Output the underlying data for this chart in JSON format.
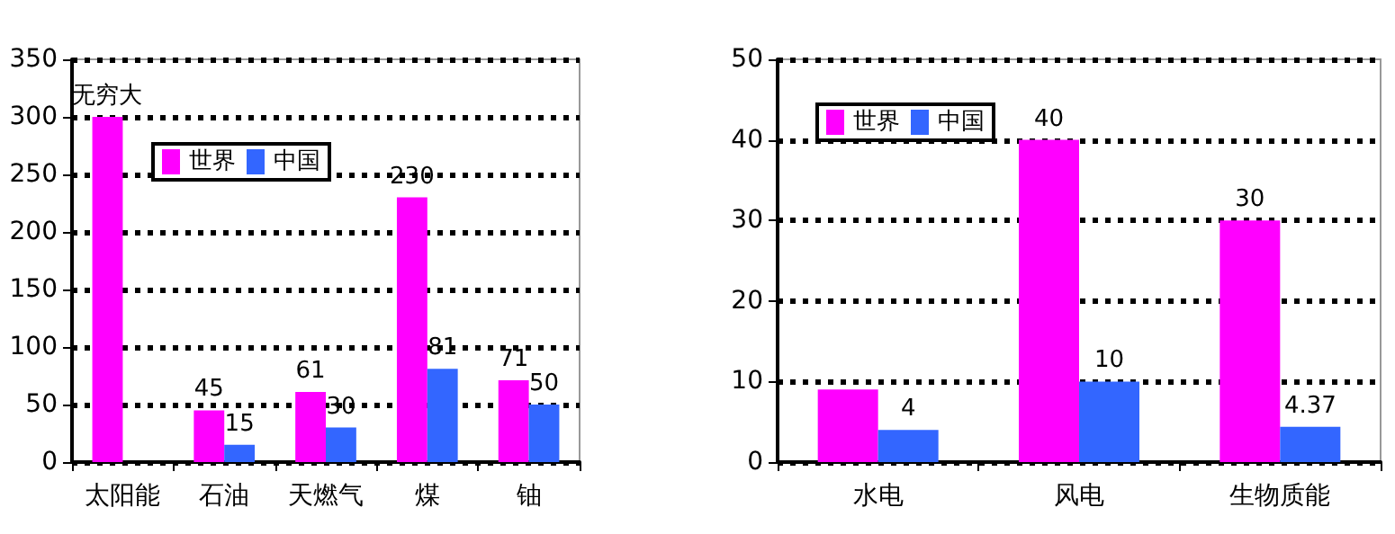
{
  "chart_data": [
    {
      "type": "bar",
      "categories": [
        "太阳能",
        "石油",
        "天燃气",
        "煤",
        "铀"
      ],
      "series": [
        {
          "name": "世界",
          "color": "#ff00ff",
          "values": [
            300,
            45,
            61,
            230,
            71
          ],
          "value_labels": [
            "无穷大",
            "45",
            "61",
            "230",
            "71"
          ]
        },
        {
          "name": "中国",
          "color": "#3366ff",
          "values": [
            null,
            15,
            30,
            81,
            50
          ],
          "value_labels": [
            null,
            "15",
            "30",
            "81",
            "50"
          ]
        }
      ],
      "ylim": [
        0,
        350
      ],
      "yticks": [
        0,
        50,
        100,
        150,
        200,
        250,
        300,
        350
      ],
      "grid": "y",
      "legend": "top"
    },
    {
      "type": "bar",
      "categories": [
        "水电",
        "风电",
        "生物质能"
      ],
      "series": [
        {
          "name": "世界",
          "color": "#ff00ff",
          "values": [
            9,
            40,
            30
          ],
          "value_labels": [
            null,
            "40",
            "30"
          ]
        },
        {
          "name": "中国",
          "color": "#3366ff",
          "values": [
            4,
            10,
            4.37
          ],
          "value_labels": [
            "4",
            "10",
            "4.37"
          ]
        }
      ],
      "ylim": [
        0,
        50
      ],
      "yticks": [
        0,
        10,
        20,
        30,
        40,
        50
      ],
      "grid": "y",
      "legend": "top left"
    }
  ]
}
